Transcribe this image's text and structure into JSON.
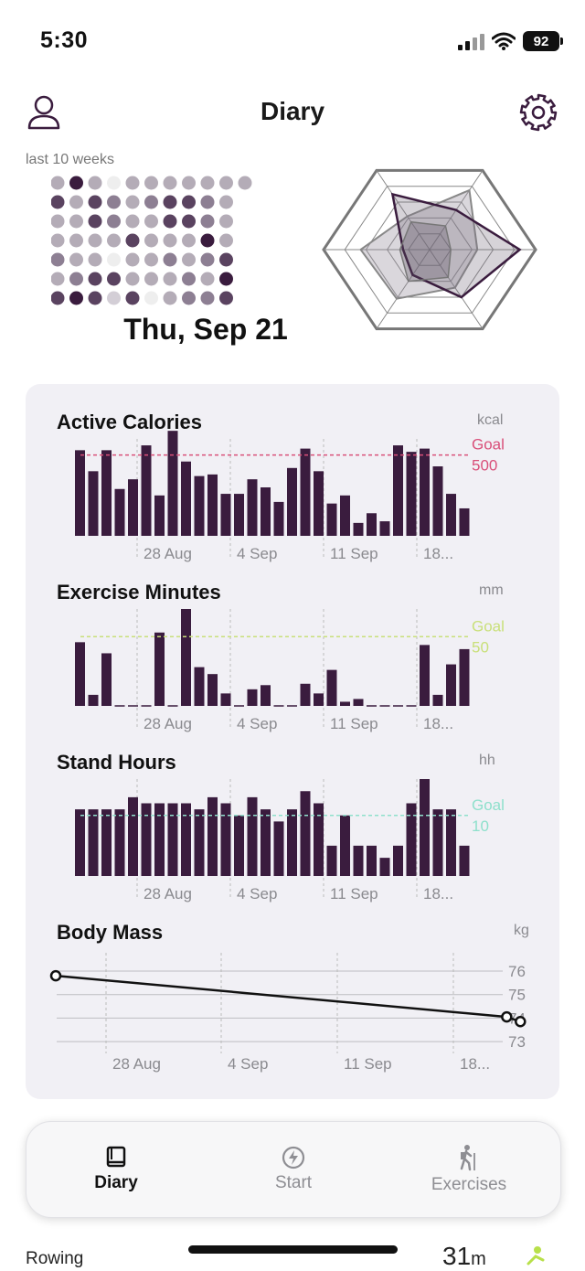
{
  "status_bar": {
    "time": "5:30",
    "battery": "92"
  },
  "header": {
    "title": "Diary"
  },
  "summary": {
    "weeks_label": "last 10 weeks",
    "date": "Thu, Sep 21"
  },
  "charts": [
    {
      "title": "Active Calories",
      "unit": "kcal",
      "goal_label": "Goal",
      "goal_value": "500",
      "goal": 500,
      "ylim": [
        0,
        600
      ],
      "goal_color": "#d9507a",
      "x_ticks": [
        "28 Aug",
        "4 Sep",
        "11 Sep",
        "18..."
      ],
      "values": [
        530,
        400,
        530,
        290,
        350,
        560,
        250,
        650,
        460,
        370,
        380,
        260,
        260,
        350,
        300,
        210,
        420,
        540,
        400,
        200,
        250,
        80,
        140,
        90,
        560,
        520,
        540,
        430,
        260,
        170
      ]
    },
    {
      "title": "Exercise Minutes",
      "unit": "mm",
      "goal_label": "Goal",
      "goal_value": "50",
      "goal": 50,
      "ylim": [
        0,
        70
      ],
      "goal_color": "#c9e07a",
      "x_ticks": [
        "28 Aug",
        "4 Sep",
        "11 Sep",
        "18..."
      ],
      "values": [
        46,
        8,
        38,
        1,
        0,
        0,
        53,
        0,
        70,
        28,
        23,
        9,
        0,
        12,
        15,
        0,
        1,
        16,
        9,
        26,
        3,
        5,
        0,
        1,
        0,
        0,
        44,
        8,
        30,
        41
      ]
    },
    {
      "title": "Stand Hours",
      "unit": "hh",
      "goal_label": "Goal",
      "goal_value": "10",
      "goal": 10,
      "ylim": [
        0,
        16
      ],
      "goal_color": "#8fe0cc",
      "x_ticks": [
        "28 Aug",
        "4 Sep",
        "11 Sep",
        "18..."
      ],
      "values": [
        11,
        11,
        11,
        11,
        13,
        12,
        12,
        12,
        12,
        11,
        13,
        12,
        10,
        13,
        11,
        9,
        11,
        14,
        12,
        5,
        10,
        5,
        5,
        3,
        5,
        12,
        16,
        11,
        11,
        5
      ]
    }
  ],
  "body_mass": {
    "title": "Body Mass",
    "unit": "kg",
    "y_ticks": [
      "76",
      "75",
      "74",
      "73"
    ],
    "x_ticks": [
      "28 Aug",
      "4 Sep",
      "11 Sep",
      "18..."
    ],
    "points": [
      {
        "day": 0,
        "value": 75.8
      },
      {
        "day": 33,
        "value": 74.05
      },
      {
        "day": 34,
        "value": 73.85
      }
    ]
  },
  "tab_bar": {
    "tabs": [
      {
        "label": "Diary",
        "icon": "book-icon"
      },
      {
        "label": "Start",
        "icon": "bolt-icon"
      },
      {
        "label": "Exercises",
        "icon": "hiker-icon"
      }
    ]
  },
  "below_content": {
    "row_label": "Rowing",
    "value": "31",
    "unit": "m"
  },
  "colors": {
    "bar": "#3a1c3e",
    "card": "#f1f0f5",
    "accent": "#3a1c3e",
    "green": "#b8e04a"
  }
}
